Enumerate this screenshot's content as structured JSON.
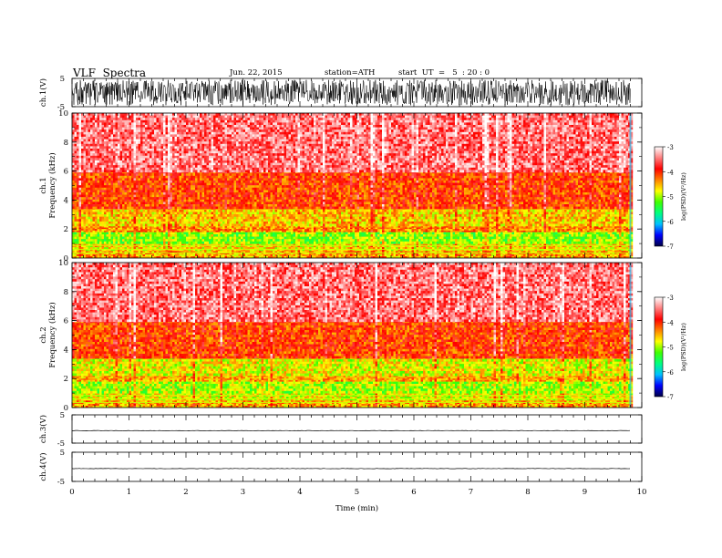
{
  "header": {
    "title": "VLF  Spectra",
    "date": "Jun. 22, 2015",
    "station": "station=ATH",
    "start": "start  UT  =   5  : 20 : 0"
  },
  "chart_data": [
    {
      "type": "line",
      "panel": "ch1-waveform",
      "ylabel": "ch.1(V)",
      "yticks": [
        "5",
        "-5"
      ],
      "ylim": [
        -5,
        5
      ],
      "description_values": {
        "amplitude_range": [
          -4.5,
          4.5
        ],
        "mean": 0
      }
    },
    {
      "type": "heatmap",
      "panel": "ch1-spectrogram",
      "ylabel_line1": "ch.1",
      "ylabel_line2": "Frequency  (kHz)",
      "yticks": [
        "0",
        "2",
        "4",
        "6",
        "8",
        "10"
      ],
      "ylim": [
        0,
        10
      ],
      "xlim": [
        0,
        9.8
      ],
      "colorbar": {
        "label": "log(PSD)(V²/Hz)",
        "ticks": [
          "-3",
          "-4",
          "-5",
          "-6",
          "-7"
        ],
        "range": [
          -7,
          -3
        ]
      },
      "bands": [
        {
          "f_range": [
            0,
            0.5
          ],
          "level": -4.5
        },
        {
          "f_range": [
            0.5,
            1.0
          ],
          "level": -4.7
        },
        {
          "f_range": [
            1.0,
            1.8
          ],
          "level": -5.1
        },
        {
          "f_range": [
            1.8,
            2.2
          ],
          "level": -4.4
        },
        {
          "f_range": [
            2.2,
            3.5
          ],
          "level": -4.6
        },
        {
          "f_range": [
            3.5,
            6.0
          ],
          "level": -4.1
        },
        {
          "f_range": [
            6.0,
            10
          ],
          "level": -3.5
        }
      ]
    },
    {
      "type": "heatmap",
      "panel": "ch2-spectrogram",
      "ylabel_line1": "ch.2",
      "ylabel_line2": "Frequency  (kHz)",
      "yticks": [
        "0",
        "2",
        "4",
        "6",
        "8",
        "10"
      ],
      "ylim": [
        0,
        10
      ],
      "xlim": [
        0,
        9.8
      ],
      "colorbar": {
        "label": "log(PSD)(V²/Hz)",
        "ticks": [
          "-3",
          "-4",
          "-5",
          "-6",
          "-7"
        ],
        "range": [
          -7,
          -3
        ]
      },
      "bands": [
        {
          "f_range": [
            0,
            0.5
          ],
          "level": -4.5
        },
        {
          "f_range": [
            0.5,
            1.0
          ],
          "level": -4.8
        },
        {
          "f_range": [
            1.0,
            1.8
          ],
          "level": -5.0
        },
        {
          "f_range": [
            1.8,
            2.2
          ],
          "level": -4.5
        },
        {
          "f_range": [
            2.2,
            3.5
          ],
          "level": -4.8
        },
        {
          "f_range": [
            3.5,
            6.0
          ],
          "level": -4.1
        },
        {
          "f_range": [
            6.0,
            10
          ],
          "level": -3.5
        }
      ]
    },
    {
      "type": "line",
      "panel": "ch3-waveform",
      "ylabel": "ch.3(V)",
      "yticks": [
        "5",
        "-5"
      ],
      "ylim": [
        -5,
        5
      ],
      "level": -0.6
    },
    {
      "type": "line",
      "panel": "ch4-waveform",
      "ylabel": "ch.4(V)",
      "yticks": [
        "5",
        "-5"
      ],
      "ylim": [
        -5,
        5
      ],
      "level": -0.6
    }
  ],
  "x_axis": {
    "label": "Time  (min)",
    "ticks": [
      "0",
      "1",
      "2",
      "3",
      "4",
      "5",
      "6",
      "7",
      "8",
      "9",
      "10"
    ],
    "range": [
      0,
      10
    ],
    "data_end": 9.8
  },
  "colors": {
    "ink": "#000000",
    "colormap": [
      "#000044",
      "#0000ff",
      "#00c0ff",
      "#00ff80",
      "#40ff00",
      "#ffff00",
      "#ff8000",
      "#ff0000",
      "#ff8080",
      "#ffffff"
    ]
  }
}
